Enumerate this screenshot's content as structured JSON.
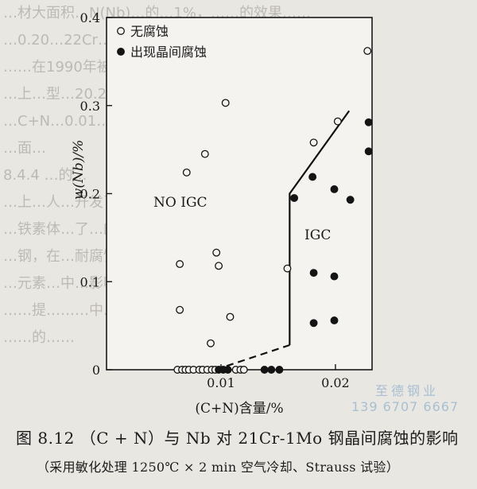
{
  "background_text": [
    "…材大面积…N(Nb)…的…1%，……的效果……",
    "…0.20…22Cr…0.5…，……，在…C+N…的不锈",
    "……在1990年被JIS标准所采用，而此之后",
    "…上…型…20.2Mo…Nb…(R24-2)…28…3.5Mo…",
    "…C+N…0.01…%…，…耐腐蚀…，用于…的…",
    "…面…",
    "8.4.4 …的…",
    "…上…人…开发了…耐腐蚀…不…",
    "…铁素体…了…的…方向…",
    "…钢，在…耐腐蚀…有人…",
    "…元素…中…影响…等人…",
    "……提………中…Cr…",
    "……的……"
  ],
  "chart_data": {
    "type": "scatter",
    "xlabel": "(C+N)含量/%",
    "ylabel": "w(Nb)/%",
    "xlim": [
      0,
      0.0232
    ],
    "ylim": [
      0,
      0.4
    ],
    "x_ticks": [
      {
        "value": 0.01,
        "label": "0.01"
      },
      {
        "value": 0.02,
        "label": "0.02"
      }
    ],
    "y_ticks": [
      {
        "value": 0,
        "label": "0"
      },
      {
        "value": 0.1,
        "label": "0.1"
      },
      {
        "value": 0.2,
        "label": "0.2"
      },
      {
        "value": 0.3,
        "label": "0.3"
      },
      {
        "value": 0.4,
        "label": "0.4"
      }
    ],
    "legend_placement": "top-left",
    "series": [
      {
        "name": "无腐蚀",
        "marker": "open-circle",
        "points": [
          [
            0.0062,
            0.0
          ],
          [
            0.0066,
            0.0
          ],
          [
            0.0069,
            0.0
          ],
          [
            0.0072,
            0.0
          ],
          [
            0.0076,
            0.0
          ],
          [
            0.0081,
            0.0
          ],
          [
            0.0084,
            0.0
          ],
          [
            0.0088,
            0.0
          ],
          [
            0.0092,
            0.0
          ],
          [
            0.0095,
            0.0
          ],
          [
            0.0113,
            0.0
          ],
          [
            0.0117,
            0.0
          ],
          [
            0.012,
            0.0
          ],
          [
            0.007,
            0.224
          ],
          [
            0.0064,
            0.12
          ],
          [
            0.0064,
            0.068
          ],
          [
            0.0086,
            0.245
          ],
          [
            0.0096,
            0.133
          ],
          [
            0.0098,
            0.118
          ],
          [
            0.0104,
            0.303
          ],
          [
            0.0091,
            0.03
          ],
          [
            0.0108,
            0.06
          ],
          [
            0.0158,
            0.115
          ],
          [
            0.0181,
            0.258
          ],
          [
            0.0202,
            0.282
          ],
          [
            0.0228,
            0.362
          ]
        ]
      },
      {
        "name": "出现晶间腐蚀",
        "marker": "filled-circle",
        "points": [
          [
            0.0098,
            0.0
          ],
          [
            0.0102,
            0.0
          ],
          [
            0.0106,
            0.0
          ],
          [
            0.0138,
            0.0
          ],
          [
            0.0144,
            0.0
          ],
          [
            0.0151,
            0.0
          ],
          [
            0.0164,
            0.195
          ],
          [
            0.018,
            0.219
          ],
          [
            0.0181,
            0.11
          ],
          [
            0.0181,
            0.053
          ],
          [
            0.0199,
            0.205
          ],
          [
            0.0199,
            0.106
          ],
          [
            0.0199,
            0.056
          ],
          [
            0.0213,
            0.193
          ],
          [
            0.0229,
            0.281
          ],
          [
            0.0229,
            0.248
          ]
        ]
      }
    ],
    "boundary_solid": [
      [
        0.016,
        0.028
      ],
      [
        0.016,
        0.2
      ],
      [
        0.0212,
        0.294
      ]
    ],
    "boundary_dashed": [
      [
        0.0095,
        0.0
      ],
      [
        0.016,
        0.028
      ]
    ],
    "region_labels": [
      {
        "text": "NO IGC",
        "x": 0.0041,
        "y": 0.185
      },
      {
        "text": "IGC",
        "x": 0.0173,
        "y": 0.148
      }
    ]
  },
  "caption": "图 8.12 （C + N）与 Nb 对 21Cr-1Mo 钢晶间腐蚀的影响",
  "subcaption": "（采用敏化处理 1250℃ × 2 min 空气冷却、Strauss 试验）",
  "watermark": {
    "line1": "至德钢业",
    "line2": "139 6707 6667"
  }
}
